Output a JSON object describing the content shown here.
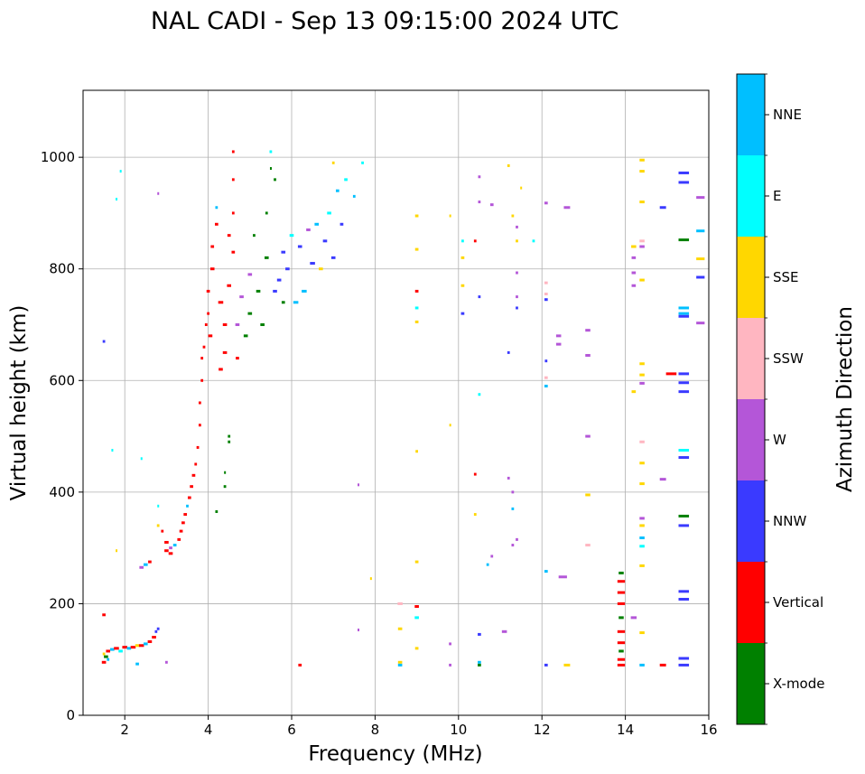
{
  "chart_data": {
    "type": "scatter",
    "title": "NAL CADI - Sep 13 09:15:00 2024 UTC",
    "xlabel": "Frequency (MHz)",
    "ylabel": "Virtual height (km)",
    "xlim": [
      1,
      16
    ],
    "ylim": [
      0,
      1120
    ],
    "xticks": [
      2,
      4,
      6,
      8,
      10,
      12,
      14,
      16
    ],
    "yticks": [
      0,
      200,
      400,
      600,
      800,
      1000
    ],
    "grid": true,
    "colorbar": {
      "label": "Azimuth Direction",
      "placement": "right",
      "categories": [
        {
          "name": "X-mode",
          "color": "#008000"
        },
        {
          "name": "Vertical",
          "color": "#ff0000"
        },
        {
          "name": "NNW",
          "color": "#3a3aff"
        },
        {
          "name": "W",
          "color": "#b456d8"
        },
        {
          "name": "SSW",
          "color": "#ffb6c1"
        },
        {
          "name": "SSE",
          "color": "#ffd700"
        },
        {
          "name": "E",
          "color": "#00ffff"
        },
        {
          "name": "NNE",
          "color": "#00bfff"
        }
      ]
    },
    "series_format": "[frequency_MHz, height_km, direction, width_MHz]",
    "points": [
      [
        1.5,
        180,
        "Vertical",
        0.08
      ],
      [
        1.5,
        670,
        "NNW",
        0.06
      ],
      [
        1.7,
        475,
        "E",
        0.04
      ],
      [
        1.8,
        295,
        "SSE",
        0.04
      ],
      [
        1.8,
        925,
        "E",
        0.04
      ],
      [
        1.9,
        975,
        "E",
        0.04
      ],
      [
        2.8,
        935,
        "W",
        0.04
      ],
      [
        2.4,
        460,
        "E",
        0.04
      ],
      [
        2.8,
        375,
        "E",
        0.04
      ],
      [
        3.0,
        95,
        "W",
        0.06
      ],
      [
        2.3,
        92,
        "NNE",
        0.08
      ],
      [
        2.8,
        155,
        "NNW",
        0.06
      ],
      [
        1.5,
        95,
        "Vertical",
        0.1
      ],
      [
        1.55,
        105,
        "X-mode",
        0.1
      ],
      [
        1.6,
        115,
        "Vertical",
        0.1
      ],
      [
        1.7,
        118,
        "NNE",
        0.1
      ],
      [
        1.8,
        120,
        "Vertical",
        0.12
      ],
      [
        1.9,
        115,
        "E",
        0.1
      ],
      [
        2.0,
        122,
        "Vertical",
        0.12
      ],
      [
        2.1,
        120,
        "NNE",
        0.1
      ],
      [
        2.2,
        122,
        "Vertical",
        0.12
      ],
      [
        2.3,
        125,
        "SSE",
        0.1
      ],
      [
        2.4,
        125,
        "Vertical",
        0.12
      ],
      [
        2.5,
        128,
        "NNE",
        0.1
      ],
      [
        2.6,
        132,
        "Vertical",
        0.1
      ],
      [
        2.7,
        140,
        "Vertical",
        0.1
      ],
      [
        2.75,
        150,
        "NNW",
        0.06
      ],
      [
        1.5,
        110,
        "SSE",
        0.06
      ],
      [
        1.6,
        100,
        "NNE",
        0.06
      ],
      [
        2.4,
        265,
        "W",
        0.1
      ],
      [
        2.5,
        270,
        "NNE",
        0.1
      ],
      [
        2.6,
        275,
        "Vertical",
        0.08
      ],
      [
        2.8,
        340,
        "SSE",
        0.06
      ],
      [
        2.9,
        330,
        "Vertical",
        0.06
      ],
      [
        3.0,
        310,
        "Vertical",
        0.1
      ],
      [
        3.0,
        295,
        "Vertical",
        0.1
      ],
      [
        3.1,
        290,
        "Vertical",
        0.1
      ],
      [
        3.1,
        300,
        "W",
        0.08
      ],
      [
        3.2,
        305,
        "NNE",
        0.08
      ],
      [
        3.3,
        315,
        "Vertical",
        0.08
      ],
      [
        3.35,
        330,
        "Vertical",
        0.08
      ],
      [
        3.4,
        345,
        "Vertical",
        0.08
      ],
      [
        3.45,
        360,
        "Vertical",
        0.08
      ],
      [
        3.5,
        375,
        "NNE",
        0.06
      ],
      [
        3.55,
        390,
        "Vertical",
        0.08
      ],
      [
        3.6,
        410,
        "Vertical",
        0.08
      ],
      [
        3.65,
        430,
        "Vertical",
        0.08
      ],
      [
        3.7,
        450,
        "Vertical",
        0.06
      ],
      [
        3.75,
        480,
        "Vertical",
        0.06
      ],
      [
        3.8,
        520,
        "Vertical",
        0.06
      ],
      [
        3.8,
        560,
        "Vertical",
        0.06
      ],
      [
        3.85,
        600,
        "Vertical",
        0.06
      ],
      [
        3.85,
        640,
        "Vertical",
        0.06
      ],
      [
        3.9,
        660,
        "Vertical",
        0.06
      ],
      [
        3.95,
        700,
        "Vertical",
        0.06
      ],
      [
        4.0,
        720,
        "Vertical",
        0.06
      ],
      [
        4.0,
        760,
        "Vertical",
        0.08
      ],
      [
        4.05,
        680,
        "Vertical",
        0.1
      ],
      [
        4.1,
        800,
        "Vertical",
        0.1
      ],
      [
        4.1,
        840,
        "Vertical",
        0.08
      ],
      [
        4.2,
        880,
        "Vertical",
        0.08
      ],
      [
        4.2,
        910,
        "NNE",
        0.06
      ],
      [
        4.3,
        620,
        "Vertical",
        0.1
      ],
      [
        4.3,
        740,
        "Vertical",
        0.12
      ],
      [
        4.4,
        700,
        "Vertical",
        0.1
      ],
      [
        4.4,
        650,
        "Vertical",
        0.1
      ],
      [
        4.5,
        860,
        "Vertical",
        0.08
      ],
      [
        4.5,
        770,
        "Vertical",
        0.1
      ],
      [
        4.6,
        1010,
        "Vertical",
        0.06
      ],
      [
        4.6,
        960,
        "Vertical",
        0.06
      ],
      [
        4.6,
        900,
        "Vertical",
        0.06
      ],
      [
        4.6,
        830,
        "Vertical",
        0.08
      ],
      [
        4.7,
        640,
        "Vertical",
        0.08
      ],
      [
        4.7,
        700,
        "W",
        0.1
      ],
      [
        4.8,
        750,
        "W",
        0.1
      ],
      [
        4.9,
        680,
        "X-mode",
        0.1
      ],
      [
        5.0,
        790,
        "W",
        0.1
      ],
      [
        5.0,
        720,
        "X-mode",
        0.1
      ],
      [
        5.1,
        860,
        "X-mode",
        0.06
      ],
      [
        5.2,
        760,
        "X-mode",
        0.1
      ],
      [
        5.3,
        700,
        "X-mode",
        0.1
      ],
      [
        5.4,
        820,
        "X-mode",
        0.1
      ],
      [
        5.4,
        900,
        "X-mode",
        0.06
      ],
      [
        5.5,
        1010,
        "E",
        0.06
      ],
      [
        5.5,
        980,
        "X-mode",
        0.04
      ],
      [
        5.6,
        960,
        "X-mode",
        0.06
      ],
      [
        5.6,
        760,
        "NNW",
        0.1
      ],
      [
        5.7,
        780,
        "NNW",
        0.1
      ],
      [
        5.8,
        830,
        "NNW",
        0.1
      ],
      [
        5.8,
        740,
        "X-mode",
        0.08
      ],
      [
        5.9,
        800,
        "NNW",
        0.1
      ],
      [
        6.0,
        860,
        "E",
        0.1
      ],
      [
        6.1,
        740,
        "NNE",
        0.12
      ],
      [
        6.2,
        840,
        "NNW",
        0.1
      ],
      [
        6.3,
        760,
        "NNE",
        0.12
      ],
      [
        6.4,
        870,
        "W",
        0.1
      ],
      [
        6.5,
        810,
        "NNW",
        0.12
      ],
      [
        6.6,
        880,
        "NNE",
        0.1
      ],
      [
        6.7,
        800,
        "SSE",
        0.1
      ],
      [
        6.8,
        850,
        "NNW",
        0.1
      ],
      [
        6.9,
        900,
        "E",
        0.1
      ],
      [
        7.0,
        820,
        "NNW",
        0.1
      ],
      [
        7.1,
        940,
        "NNE",
        0.08
      ],
      [
        7.2,
        880,
        "NNW",
        0.08
      ],
      [
        7.3,
        960,
        "E",
        0.08
      ],
      [
        7.5,
        930,
        "NNE",
        0.06
      ],
      [
        7.7,
        990,
        "E",
        0.06
      ],
      [
        7.0,
        990,
        "SSE",
        0.06
      ],
      [
        4.5,
        500,
        "X-mode",
        0.06
      ],
      [
        4.5,
        490,
        "X-mode",
        0.06
      ],
      [
        4.4,
        435,
        "X-mode",
        0.04
      ],
      [
        4.4,
        410,
        "X-mode",
        0.06
      ],
      [
        4.2,
        365,
        "X-mode",
        0.06
      ],
      [
        6.2,
        90,
        "Vertical",
        0.08
      ],
      [
        7.6,
        413,
        "W",
        0.04
      ],
      [
        7.6,
        153,
        "W",
        0.04
      ],
      [
        7.9,
        245,
        "SSE",
        0.04
      ],
      [
        8.6,
        200,
        "SSW",
        0.12
      ],
      [
        8.6,
        155,
        "SSE",
        0.1
      ],
      [
        8.6,
        95,
        "SSE",
        0.1
      ],
      [
        8.6,
        90,
        "NNE",
        0.1
      ],
      [
        9.0,
        195,
        "Vertical",
        0.1
      ],
      [
        9.0,
        175,
        "E",
        0.1
      ],
      [
        9.0,
        120,
        "SSE",
        0.08
      ],
      [
        9.0,
        275,
        "SSE",
        0.08
      ],
      [
        9.0,
        473,
        "SSE",
        0.06
      ],
      [
        9.0,
        705,
        "SSE",
        0.08
      ],
      [
        9.0,
        730,
        "E",
        0.08
      ],
      [
        9.0,
        760,
        "Vertical",
        0.08
      ],
      [
        9.0,
        835,
        "SSE",
        0.08
      ],
      [
        9.0,
        895,
        "SSE",
        0.08
      ],
      [
        9.8,
        895,
        "SSE",
        0.04
      ],
      [
        9.8,
        520,
        "SSE",
        0.04
      ],
      [
        9.8,
        128,
        "W",
        0.06
      ],
      [
        9.8,
        90,
        "W",
        0.06
      ],
      [
        10.1,
        720,
        "NNW",
        0.08
      ],
      [
        10.1,
        770,
        "SSE",
        0.08
      ],
      [
        10.1,
        820,
        "SSE",
        0.08
      ],
      [
        10.1,
        850,
        "E",
        0.06
      ],
      [
        10.4,
        850,
        "Vertical",
        0.06
      ],
      [
        10.4,
        432,
        "Vertical",
        0.06
      ],
      [
        10.4,
        360,
        "SSE",
        0.06
      ],
      [
        10.5,
        965,
        "W",
        0.06
      ],
      [
        10.5,
        920,
        "W",
        0.06
      ],
      [
        10.5,
        750,
        "NNW",
        0.06
      ],
      [
        10.5,
        575,
        "E",
        0.06
      ],
      [
        10.5,
        145,
        "NNW",
        0.08
      ],
      [
        10.5,
        95,
        "NNE",
        0.08
      ],
      [
        10.5,
        90,
        "X-mode",
        0.08
      ],
      [
        10.7,
        270,
        "NNE",
        0.06
      ],
      [
        10.8,
        915,
        "W",
        0.08
      ],
      [
        10.8,
        285,
        "W",
        0.06
      ],
      [
        11.1,
        150,
        "W",
        0.12
      ],
      [
        11.2,
        985,
        "SSE",
        0.06
      ],
      [
        11.2,
        650,
        "NNW",
        0.06
      ],
      [
        11.2,
        425,
        "W",
        0.06
      ],
      [
        11.3,
        895,
        "SSE",
        0.06
      ],
      [
        11.3,
        400,
        "W",
        0.06
      ],
      [
        11.3,
        370,
        "NNE",
        0.06
      ],
      [
        11.3,
        305,
        "W",
        0.06
      ],
      [
        11.4,
        875,
        "W",
        0.06
      ],
      [
        11.4,
        850,
        "SSE",
        0.06
      ],
      [
        11.4,
        793,
        "W",
        0.06
      ],
      [
        11.4,
        750,
        "W",
        0.06
      ],
      [
        11.4,
        730,
        "NNW",
        0.06
      ],
      [
        11.5,
        945,
        "SSE",
        0.04
      ],
      [
        11.4,
        315,
        "W",
        0.06
      ],
      [
        11.8,
        850,
        "E",
        0.06
      ],
      [
        12.1,
        918,
        "W",
        0.08
      ],
      [
        12.1,
        775,
        "SSW",
        0.08
      ],
      [
        12.1,
        755,
        "SSW",
        0.08
      ],
      [
        12.1,
        745,
        "NNW",
        0.08
      ],
      [
        12.1,
        635,
        "NNW",
        0.06
      ],
      [
        12.1,
        605,
        "SSW",
        0.08
      ],
      [
        12.1,
        590,
        "NNE",
        0.08
      ],
      [
        12.1,
        258,
        "NNE",
        0.08
      ],
      [
        12.1,
        90,
        "NNW",
        0.08
      ],
      [
        12.4,
        680,
        "W",
        0.12
      ],
      [
        12.4,
        665,
        "W",
        0.12
      ],
      [
        12.5,
        248,
        "W",
        0.2
      ],
      [
        12.6,
        910,
        "W",
        0.15
      ],
      [
        12.6,
        90,
        "SSE",
        0.15
      ],
      [
        13.1,
        690,
        "W",
        0.12
      ],
      [
        13.1,
        645,
        "W",
        0.12
      ],
      [
        13.1,
        500,
        "W",
        0.12
      ],
      [
        13.1,
        395,
        "SSE",
        0.12
      ],
      [
        13.1,
        305,
        "SSW",
        0.12
      ],
      [
        13.9,
        255,
        "X-mode",
        0.12
      ],
      [
        13.9,
        240,
        "Vertical",
        0.18
      ],
      [
        13.9,
        220,
        "Vertical",
        0.18
      ],
      [
        13.9,
        200,
        "Vertical",
        0.18
      ],
      [
        13.9,
        175,
        "X-mode",
        0.12
      ],
      [
        13.9,
        150,
        "Vertical",
        0.18
      ],
      [
        13.9,
        130,
        "Vertical",
        0.18
      ],
      [
        13.9,
        115,
        "X-mode",
        0.12
      ],
      [
        13.9,
        100,
        "Vertical",
        0.18
      ],
      [
        13.9,
        90,
        "Vertical",
        0.18
      ],
      [
        14.2,
        175,
        "W",
        0.14
      ],
      [
        14.2,
        840,
        "SSE",
        0.12
      ],
      [
        14.2,
        820,
        "W",
        0.1
      ],
      [
        14.2,
        793,
        "W",
        0.1
      ],
      [
        14.2,
        770,
        "W",
        0.1
      ],
      [
        14.2,
        580,
        "SSE",
        0.1
      ],
      [
        14.4,
        995,
        "SSE",
        0.12
      ],
      [
        14.4,
        975,
        "SSE",
        0.12
      ],
      [
        14.4,
        920,
        "SSE",
        0.12
      ],
      [
        14.4,
        850,
        "SSW",
        0.12
      ],
      [
        14.4,
        840,
        "W",
        0.12
      ],
      [
        14.4,
        780,
        "SSE",
        0.12
      ],
      [
        14.4,
        630,
        "SSE",
        0.12
      ],
      [
        14.4,
        610,
        "SSE",
        0.12
      ],
      [
        14.4,
        595,
        "W",
        0.12
      ],
      [
        14.4,
        490,
        "SSW",
        0.12
      ],
      [
        14.4,
        452,
        "SSE",
        0.12
      ],
      [
        14.4,
        415,
        "SSE",
        0.12
      ],
      [
        14.4,
        353,
        "W",
        0.12
      ],
      [
        14.4,
        340,
        "SSE",
        0.12
      ],
      [
        14.4,
        318,
        "NNE",
        0.12
      ],
      [
        14.4,
        303,
        "E",
        0.12
      ],
      [
        14.4,
        268,
        "SSE",
        0.12
      ],
      [
        14.4,
        148,
        "SSE",
        0.12
      ],
      [
        14.4,
        90,
        "NNE",
        0.12
      ],
      [
        14.9,
        910,
        "NNW",
        0.15
      ],
      [
        14.9,
        423,
        "W",
        0.15
      ],
      [
        14.9,
        90,
        "Vertical",
        0.15
      ],
      [
        15.1,
        612,
        "Vertical",
        0.25
      ],
      [
        15.4,
        972,
        "NNW",
        0.25
      ],
      [
        15.4,
        955,
        "NNW",
        0.25
      ],
      [
        15.4,
        852,
        "X-mode",
        0.25
      ],
      [
        15.4,
        730,
        "NNE",
        0.25
      ],
      [
        15.4,
        720,
        "NNE",
        0.25
      ],
      [
        15.4,
        715,
        "NNW",
        0.25
      ],
      [
        15.4,
        612,
        "NNW",
        0.25
      ],
      [
        15.4,
        596,
        "NNW",
        0.25
      ],
      [
        15.4,
        580,
        "NNW",
        0.25
      ],
      [
        15.4,
        475,
        "E",
        0.25
      ],
      [
        15.4,
        462,
        "NNW",
        0.25
      ],
      [
        15.4,
        357,
        "X-mode",
        0.25
      ],
      [
        15.4,
        340,
        "NNW",
        0.25
      ],
      [
        15.4,
        222,
        "NNW",
        0.25
      ],
      [
        15.4,
        208,
        "NNW",
        0.25
      ],
      [
        15.4,
        102,
        "NNW",
        0.25
      ],
      [
        15.4,
        90,
        "NNW",
        0.25
      ],
      [
        15.8,
        928,
        "W",
        0.2
      ],
      [
        15.8,
        868,
        "NNE",
        0.2
      ],
      [
        15.8,
        818,
        "SSE",
        0.2
      ],
      [
        15.8,
        785,
        "NNW",
        0.2
      ],
      [
        15.8,
        703,
        "W",
        0.2
      ]
    ]
  }
}
